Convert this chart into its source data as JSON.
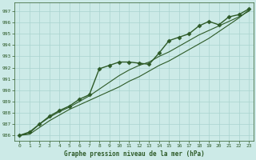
{
  "xlabel": "Graphe pression niveau de la mer (hPa)",
  "ylabel": "",
  "background_color": "#cceae7",
  "grid_color": "#aad4d0",
  "line_color": "#2d5a27",
  "xlim": [
    -0.5,
    23.5
  ],
  "ylim": [
    985.5,
    997.8
  ],
  "yticks": [
    986,
    987,
    988,
    989,
    990,
    991,
    992,
    993,
    994,
    995,
    996,
    997
  ],
  "xticks": [
    0,
    1,
    2,
    3,
    4,
    5,
    6,
    7,
    8,
    9,
    10,
    11,
    12,
    13,
    14,
    15,
    16,
    17,
    18,
    19,
    20,
    21,
    22,
    23
  ],
  "series": [
    {
      "x": [
        0,
        1,
        2,
        3,
        4,
        5,
        6,
        7,
        8,
        9,
        10,
        11,
        12,
        13,
        14,
        15,
        16,
        17,
        18,
        19,
        20,
        21,
        22,
        23
      ],
      "y": [
        986.0,
        986.3,
        987.0,
        987.7,
        988.2,
        988.6,
        989.2,
        989.6,
        991.9,
        992.2,
        992.5,
        992.5,
        992.4,
        992.3,
        993.3,
        994.4,
        994.7,
        995.0,
        995.7,
        996.1,
        995.8,
        996.5,
        996.7,
        997.2
      ],
      "marker": "D",
      "markersize": 2.5,
      "linewidth": 1.0
    },
    {
      "x": [
        0,
        1,
        2,
        3,
        4,
        5,
        6,
        7,
        8,
        9,
        10,
        11,
        12,
        13,
        14,
        15,
        16,
        17,
        18,
        19,
        20,
        21,
        22,
        23
      ],
      "y": [
        986.0,
        986.2,
        987.0,
        987.6,
        988.1,
        988.5,
        989.0,
        989.5,
        990.1,
        990.7,
        991.3,
        991.8,
        992.2,
        992.5,
        993.0,
        993.4,
        993.9,
        994.4,
        994.9,
        995.3,
        995.7,
        996.1,
        996.5,
        997.0
      ],
      "marker": null,
      "markersize": 0,
      "linewidth": 0.8
    },
    {
      "x": [
        0,
        1,
        2,
        3,
        4,
        5,
        6,
        7,
        8,
        9,
        10,
        11,
        12,
        13,
        14,
        15,
        16,
        17,
        18,
        19,
        20,
        21,
        22,
        23
      ],
      "y": [
        986.0,
        986.1,
        986.7,
        987.3,
        987.8,
        988.3,
        988.7,
        989.1,
        989.5,
        989.9,
        990.3,
        990.8,
        991.2,
        991.7,
        992.2,
        992.6,
        993.1,
        993.6,
        994.1,
        994.6,
        995.2,
        995.8,
        996.4,
        997.1
      ],
      "marker": null,
      "markersize": 0,
      "linewidth": 0.8
    }
  ]
}
